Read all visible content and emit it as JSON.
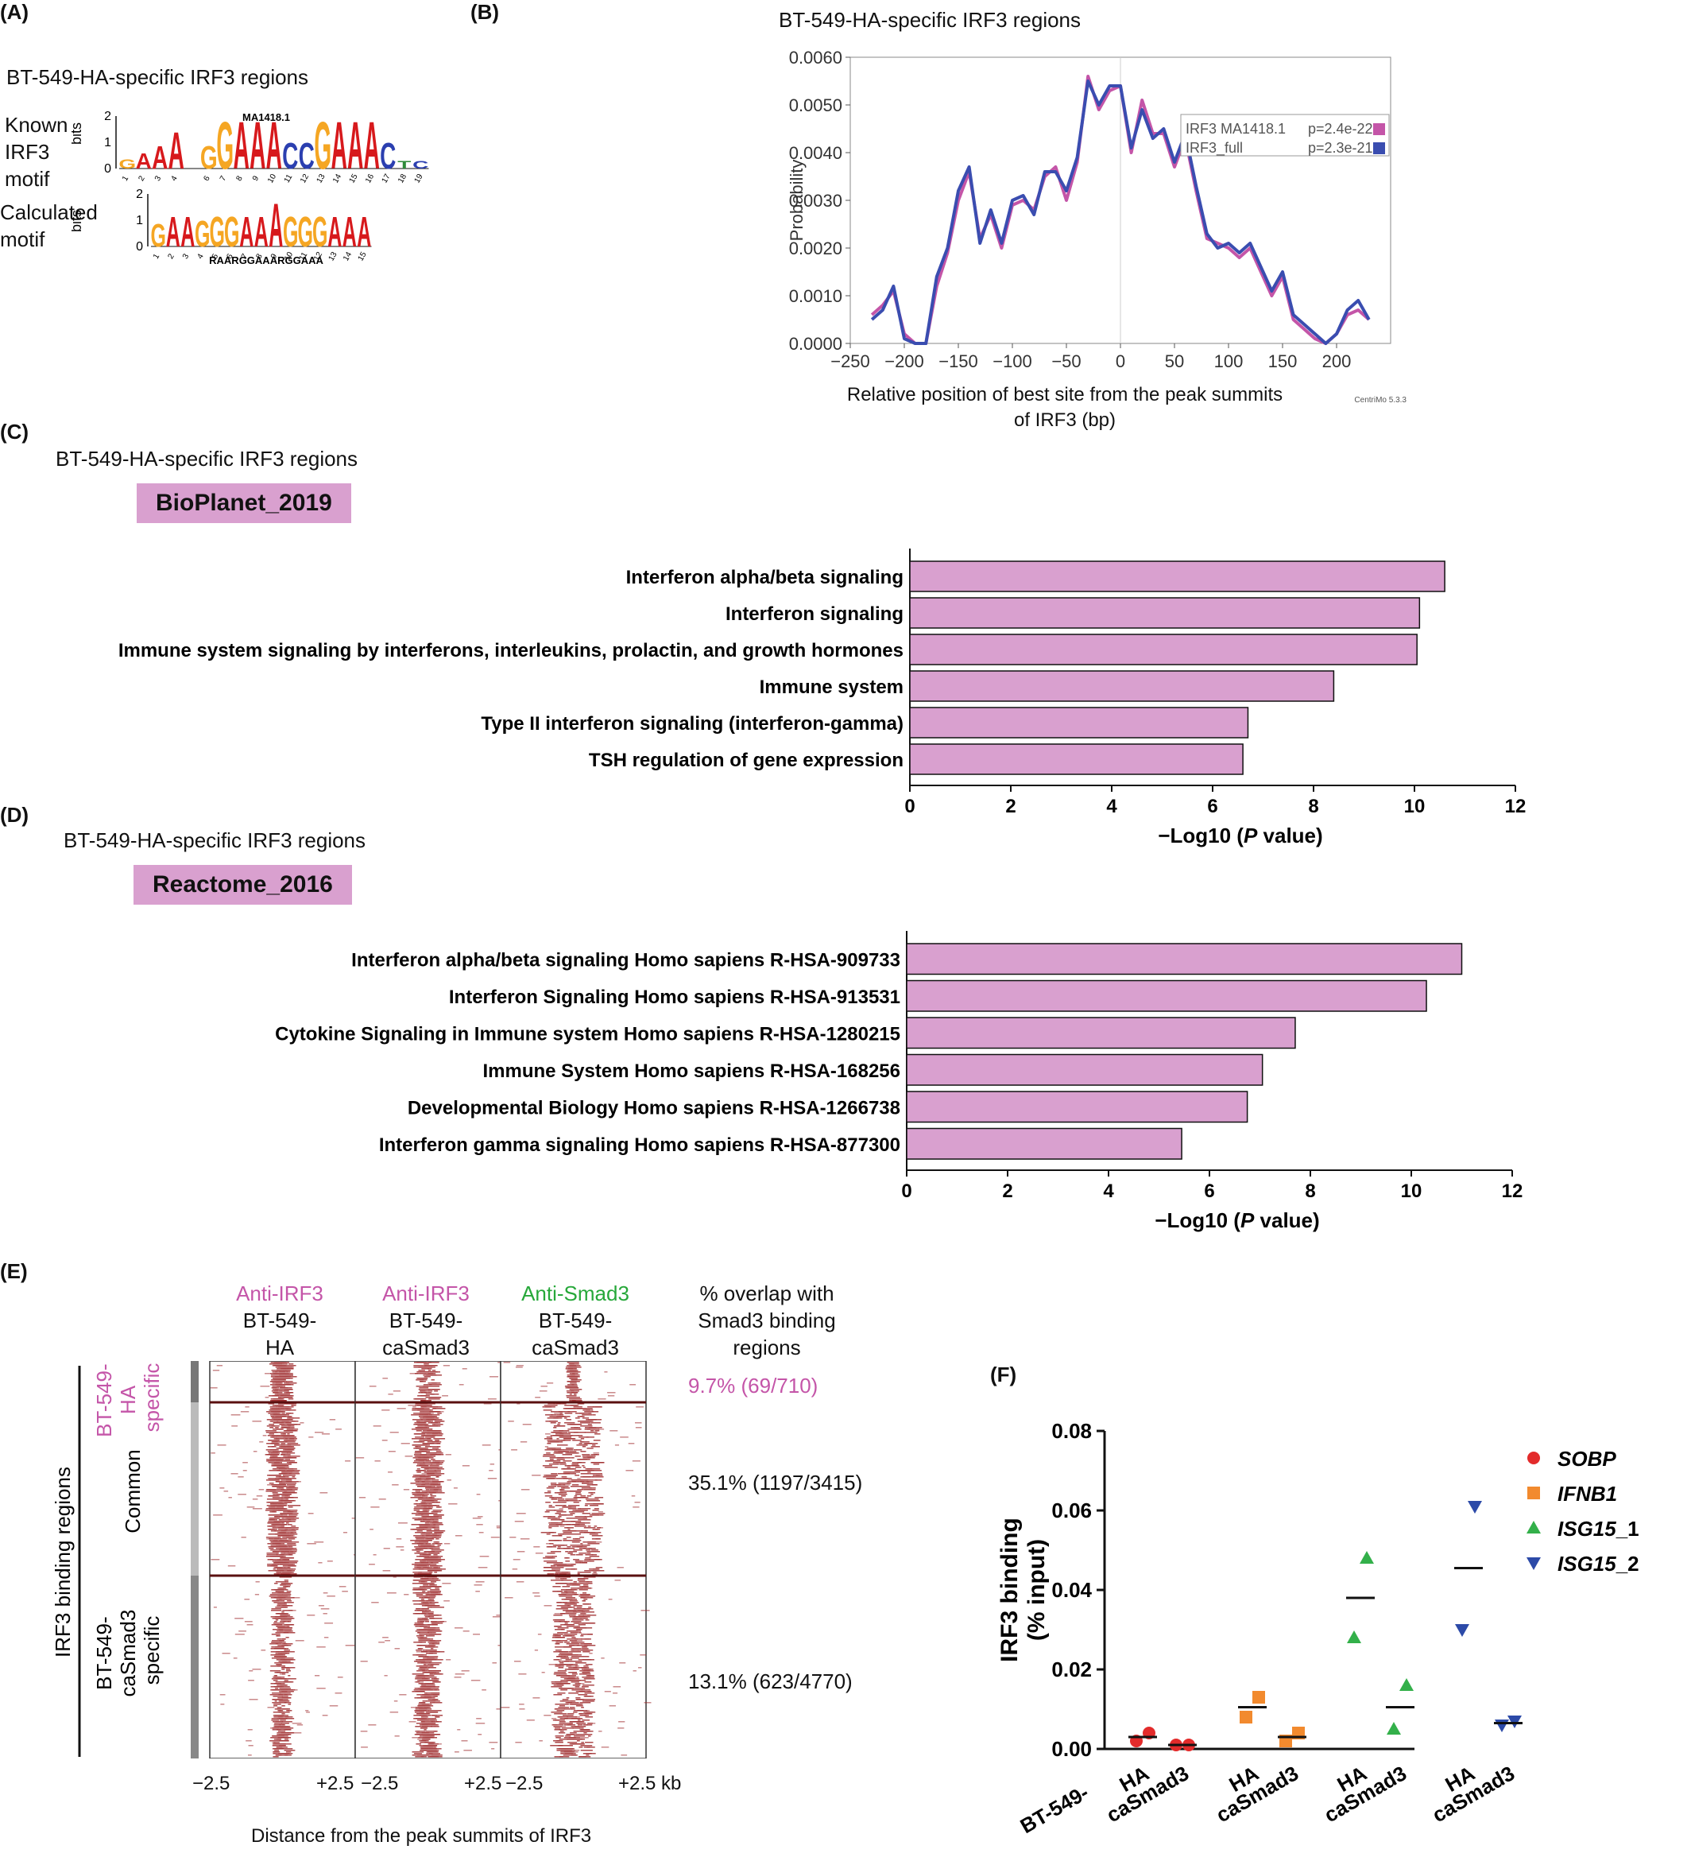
{
  "panel_labels": {
    "a": "(A)",
    "b": "(B)",
    "c": "(C)",
    "d": "(D)",
    "e": "(E)",
    "f": "(F)"
  },
  "panel_a": {
    "title": "BT-549-HA-specific IRF3 regions",
    "known_label": [
      "Known",
      "IRF3",
      "motif"
    ],
    "calc_label": [
      "Calculated",
      "motif"
    ],
    "ylabel": "bits",
    "known_name": "MA1418.1",
    "known_letters": [
      "G",
      "A",
      "A",
      "A",
      "",
      "G",
      "G",
      "A",
      "A",
      "A",
      "C",
      "C",
      "G",
      "A",
      "A",
      "A",
      "C",
      "T",
      "C"
    ],
    "calc_letters": [
      "G",
      "A",
      "A",
      "G",
      "G",
      "G",
      "A",
      "A",
      "A",
      "G",
      "G",
      "G",
      "A",
      "A",
      "A"
    ],
    "calc_seq": "RAARGGAAARGGAAA",
    "yticks": [
      "0",
      "1",
      "2"
    ],
    "colors": {
      "A": "#d7191c",
      "G": "#f5a623",
      "C": "#2b3fb0",
      "T": "#2e8b3a"
    }
  },
  "panel_b": {
    "title": "BT-549-HA-specific IRF3 regions",
    "credit": "CentriMo 5.3.3"
  },
  "panel_c": {
    "title": "BT-549-HA-specific IRF3 regions",
    "tag": "BioPlanet_2019"
  },
  "panel_d": {
    "title": "BT-549-HA-specific IRF3 regions",
    "tag": "Reactome_2016"
  },
  "panel_e": {
    "col1": {
      "ab": "Anti-IRF3",
      "line1": "BT-549-",
      "line2": "HA"
    },
    "col2": {
      "ab": "Anti-IRF3",
      "line1": "BT-549-",
      "line2": "caSmad3"
    },
    "col3": {
      "ab": "Anti-Smad3",
      "line1": "BT-549-",
      "line2": "caSmad3"
    },
    "overlap_header": [
      "% overlap with",
      "Smad3 binding",
      "regions"
    ],
    "row_group": "IRF3 binding regions",
    "row1": [
      "BT-549-",
      "HA",
      "specific"
    ],
    "row2": "Common",
    "row3": [
      "BT-549-",
      "caSmad3",
      "specific"
    ],
    "overlap1": "9.7% (69/710)",
    "overlap2": "35.1% (1197/3415)",
    "overlap3": "13.1% (623/4770)",
    "xt_left": "−2.5",
    "xt_right": "+2.5",
    "xt_right_last": "+2.5 kb",
    "xlabel": "Distance from the peak summits of IRF3",
    "colors": {
      "anti_irf3": "#c455a8",
      "anti_smad3": "#27a83a",
      "heat": "#9e2a2b"
    }
  },
  "chart_data": [
    {
      "id": "B",
      "type": "line",
      "title": "BT-549-HA-specific IRF3 regions",
      "xlabel": "Relative position of best site from the peak summits of IRF3 (bp)",
      "ylabel": "Probability",
      "xlim": [
        -250,
        250
      ],
      "ylim": [
        0,
        0.006
      ],
      "xticks": [
        "−250",
        "−200",
        "−150",
        "−100",
        "−50",
        "0",
        "50",
        "100",
        "150",
        "200"
      ],
      "yticks": [
        "0.0000",
        "0.0010",
        "0.0020",
        "0.0030",
        "0.0040",
        "0.0050",
        "0.0060"
      ],
      "legend_position": "top-right",
      "x": [
        -230,
        -220,
        -210,
        -200,
        -190,
        -180,
        -170,
        -160,
        -150,
        -140,
        -130,
        -120,
        -110,
        -100,
        -90,
        -80,
        -70,
        -60,
        -50,
        -40,
        -30,
        -20,
        -10,
        0,
        10,
        20,
        30,
        40,
        50,
        60,
        70,
        80,
        90,
        100,
        110,
        120,
        130,
        140,
        150,
        160,
        170,
        180,
        190,
        200,
        210,
        220,
        230
      ],
      "series": [
        {
          "name": "IRF3 MA1418.1",
          "pvalue": "p=2.4e-22",
          "color": "#c455a8",
          "values": [
            0.0006,
            0.0008,
            0.0011,
            0.0002,
            0.0,
            0.0,
            0.0012,
            0.0019,
            0.003,
            0.0036,
            0.0022,
            0.0027,
            0.002,
            0.0029,
            0.003,
            0.0028,
            0.0035,
            0.0037,
            0.003,
            0.0038,
            0.0056,
            0.0049,
            0.0053,
            0.0054,
            0.004,
            0.0051,
            0.0044,
            0.0044,
            0.0037,
            0.0043,
            0.0032,
            0.0022,
            0.0021,
            0.002,
            0.0018,
            0.002,
            0.0015,
            0.001,
            0.0014,
            0.0005,
            0.0003,
            0.0001,
            0.0,
            0.0002,
            0.0006,
            0.0007,
            0.0005
          ]
        },
        {
          "name": "IRF3_full",
          "pvalue": "p=2.3e-21",
          "color": "#3a4db0",
          "values": [
            0.0005,
            0.0007,
            0.0012,
            0.0001,
            0.0,
            0.0,
            0.0014,
            0.002,
            0.0032,
            0.0037,
            0.0021,
            0.0028,
            0.0021,
            0.003,
            0.0031,
            0.0027,
            0.0036,
            0.0036,
            0.0032,
            0.0039,
            0.0055,
            0.005,
            0.0054,
            0.0054,
            0.0041,
            0.0049,
            0.0043,
            0.0045,
            0.0038,
            0.0044,
            0.0033,
            0.0023,
            0.002,
            0.0021,
            0.0019,
            0.0021,
            0.0016,
            0.0011,
            0.0015,
            0.0006,
            0.0004,
            0.0002,
            0.0,
            0.0002,
            0.0007,
            0.0009,
            0.0005
          ]
        }
      ]
    },
    {
      "id": "C",
      "type": "bar",
      "orientation": "horizontal",
      "title": "BioPlanet_2019",
      "categories": [
        "Interferon alpha/beta signaling",
        "Interferon signaling",
        "Immune system signaling by interferons, interleukins, prolactin, and growth hormones",
        "Immune system",
        "Type II interferon signaling (interferon-gamma)",
        "TSH regulation of gene expression"
      ],
      "values": [
        10.6,
        10.1,
        10.05,
        8.4,
        6.7,
        6.6
      ],
      "xlabel": "−Log10 (P value)",
      "xlim": [
        0,
        12
      ],
      "xticks": [
        "0",
        "2",
        "4",
        "6",
        "8",
        "10",
        "12"
      ],
      "color": "#d9a0cf"
    },
    {
      "id": "D",
      "type": "bar",
      "orientation": "horizontal",
      "title": "Reactome_2016",
      "categories": [
        "Interferon alpha/beta signaling Homo sapiens R-HSA-909733",
        "Interferon Signaling Homo sapiens R-HSA-913531",
        "Cytokine Signaling in Immune system Homo sapiens R-HSA-1280215",
        "Immune System Homo sapiens R-HSA-168256",
        "Developmental Biology Homo sapiens R-HSA-1266738",
        "Interferon gamma signaling Homo sapiens R-HSA-877300"
      ],
      "values": [
        11.0,
        10.3,
        7.7,
        7.05,
        6.75,
        5.45
      ],
      "xlabel": "−Log10 (P value)",
      "xlim": [
        0,
        12
      ],
      "xticks": [
        "0",
        "2",
        "4",
        "6",
        "8",
        "10",
        "12"
      ],
      "color": "#d9a0cf"
    },
    {
      "id": "F",
      "type": "scatter",
      "ylabel": "IRF3 binding (% input)",
      "ylim": [
        0,
        0.08
      ],
      "yticks": [
        "0.00",
        "0.02",
        "0.04",
        "0.06",
        "0.08"
      ],
      "x_prefix": "BT-549-",
      "categories": [
        "HA",
        "caSmad3",
        "HA",
        "caSmad3",
        "HA",
        "caSmad3",
        "HA",
        "caSmad3"
      ],
      "series": [
        {
          "name": "SOBP",
          "color": "#e32b2b",
          "marker": "circle",
          "points": {
            "HA": [
              0.002,
              0.004
            ],
            "caSmad3": [
              0.001,
              0.001
            ]
          },
          "mean": {
            "HA": 0.003,
            "caSmad3": 0.001
          }
        },
        {
          "name": "IFNB1",
          "color": "#f28a2e",
          "marker": "square",
          "points": {
            "HA": [
              0.008,
              0.013
            ],
            "caSmad3": [
              0.002,
              0.004
            ]
          },
          "mean": {
            "HA": 0.0105,
            "caSmad3": 0.003
          }
        },
        {
          "name": "ISG15_1",
          "color": "#33b04a",
          "marker": "triangle-up",
          "points": {
            "HA": [
              0.028,
              0.048
            ],
            "caSmad3": [
              0.005,
              0.016
            ]
          },
          "mean": {
            "HA": 0.038,
            "caSmad3": 0.0105
          }
        },
        {
          "name": "ISG15_2",
          "color": "#2c4aa8",
          "marker": "triangle-down",
          "points": {
            "HA": [
              0.03,
              0.061
            ],
            "caSmad3": [
              0.006,
              0.007
            ]
          },
          "mean": {
            "HA": 0.0455,
            "caSmad3": 0.0065
          }
        }
      ],
      "legend_position": "top-right"
    }
  ]
}
